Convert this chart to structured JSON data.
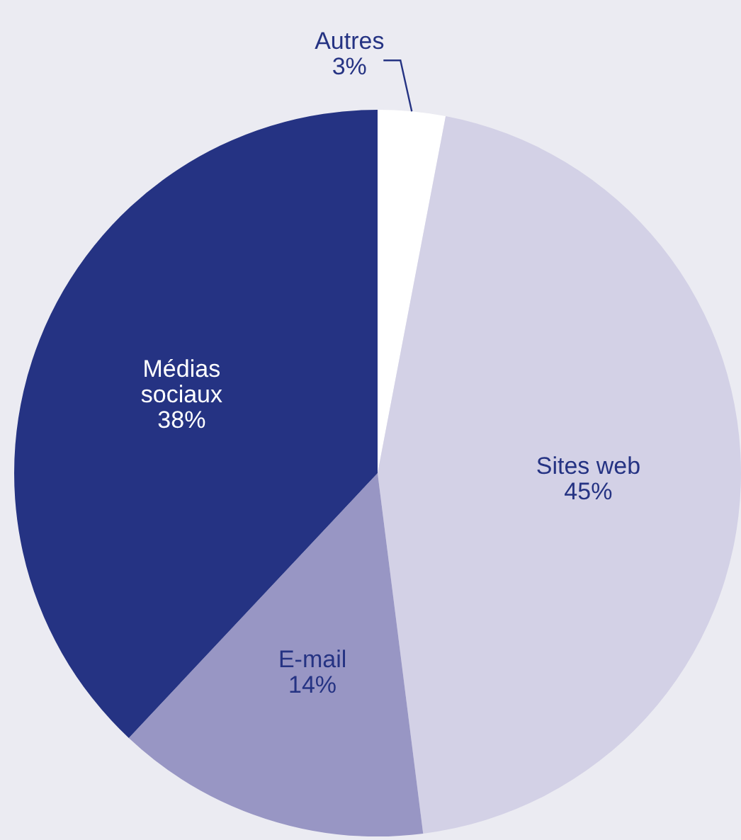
{
  "chart_data": {
    "type": "pie",
    "categories": [
      "Autres",
      "Sites web",
      "E-mail",
      "Médias sociaux"
    ],
    "values": [
      3,
      45,
      14,
      38
    ],
    "value_labels": [
      "3%",
      "45%",
      "14%",
      "38%"
    ],
    "colors": [
      "#ffffff",
      "#d3d1e6",
      "#9896c4",
      "#253383"
    ],
    "legend": false
  }
}
